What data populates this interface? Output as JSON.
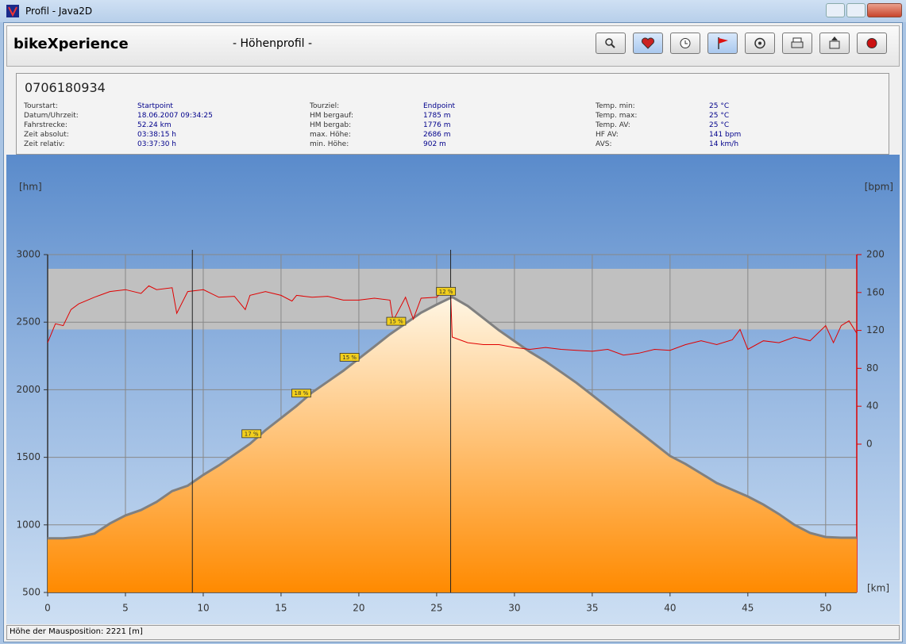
{
  "window": {
    "title": "Profil - Java2D"
  },
  "toolbar": {
    "app": "bikeXperience",
    "view": "- Höhenprofil -"
  },
  "info": {
    "tour_id": "0706180934",
    "columns": [
      [
        [
          "Tourstart:",
          "Startpoint"
        ],
        [
          "Datum/Uhrzeit:",
          "18.06.2007 09:34:25"
        ],
        [
          "Fahrstrecke:",
          "52.24 km"
        ],
        [
          "Zeit absolut:",
          "03:38:15 h"
        ],
        [
          "Zeit relativ:",
          "03:37:30 h"
        ]
      ],
      [
        [
          "Tourziel:",
          "Endpoint"
        ],
        [
          "HM bergauf:",
          "1785 m"
        ],
        [
          "HM bergab:",
          "1776 m"
        ],
        [
          "max. Höhe:",
          "2686 m"
        ],
        [
          "min. Höhe:",
          "902 m"
        ]
      ],
      [
        [
          "Temp. min:",
          "25 °C"
        ],
        [
          "Temp. max:",
          "25 °C"
        ],
        [
          "Temp. AV:",
          "25 °C"
        ],
        [
          "HF AV:",
          "141 bpm"
        ],
        [
          "AVS:",
          "14 km/h"
        ]
      ]
    ]
  },
  "chart_data": {
    "type": "line",
    "y_label": "[hm]",
    "y2_label": "[bpm]",
    "x_label": "[km]",
    "xlim": [
      0,
      52
    ],
    "xticks": [
      0,
      5,
      10,
      15,
      20,
      25,
      30,
      35,
      40,
      45,
      50
    ],
    "ylim": [
      500,
      3000
    ],
    "yticks": [
      500,
      1000,
      1500,
      2000,
      2500,
      3000
    ],
    "y2lim": [
      -156.5,
      200
    ],
    "y2ticks": [
      0,
      40,
      80,
      120,
      160,
      200
    ],
    "grid": true,
    "hr_zone": [
      121,
      185
    ],
    "markers": [
      9.3,
      25.9
    ],
    "grade_labels": [
      {
        "km": 13.1,
        "label": "17 %"
      },
      {
        "km": 16.3,
        "label": "18 %"
      },
      {
        "km": 19.4,
        "label": "15 %"
      },
      {
        "km": 22.4,
        "label": "15 %"
      },
      {
        "km": 25.6,
        "label": "12 %"
      }
    ],
    "series": [
      {
        "color": "#808080",
        "x": [
          0,
          1,
          2,
          3,
          4,
          5,
          6,
          7,
          8,
          9,
          10,
          11,
          12,
          13,
          14,
          15,
          16,
          17,
          18,
          19,
          20,
          21,
          22,
          23,
          24,
          25,
          26,
          27,
          28,
          29,
          30,
          31,
          32,
          33,
          34,
          35,
          36,
          37,
          38,
          39,
          40,
          41,
          42,
          43,
          44,
          45,
          46,
          47,
          48,
          49,
          50,
          51,
          52
        ],
        "values": [
          900,
          900,
          910,
          935,
          1010,
          1070,
          1110,
          1170,
          1250,
          1290,
          1370,
          1440,
          1520,
          1600,
          1700,
          1790,
          1880,
          1980,
          2060,
          2140,
          2230,
          2320,
          2410,
          2490,
          2570,
          2630,
          2686,
          2620,
          2530,
          2440,
          2360,
          2280,
          2210,
          2130,
          2050,
          1960,
          1870,
          1780,
          1690,
          1600,
          1510,
          1450,
          1380,
          1310,
          1260,
          1210,
          1150,
          1080,
          1000,
          940,
          910,
          905,
          905
        ]
      },
      {
        "color": "#e00000",
        "axis": "y2",
        "x": [
          0,
          0.5,
          1,
          1.5,
          2,
          3,
          4,
          5,
          6,
          6.5,
          7,
          8,
          8.3,
          9,
          10,
          11,
          12,
          12.7,
          13,
          14,
          15,
          15.7,
          16,
          17,
          18,
          19,
          20,
          21,
          22,
          22.2,
          23,
          23.5,
          24,
          25,
          25.5,
          25.9,
          26,
          27,
          28,
          29,
          30,
          31,
          32,
          33,
          34,
          35,
          36,
          37,
          38,
          39,
          40,
          41,
          42,
          43,
          44,
          44.5,
          45,
          46,
          47,
          48,
          49,
          50,
          50.5,
          51,
          51.5,
          52
        ],
        "values": [
          107,
          127,
          125,
          142,
          148,
          155,
          161,
          163,
          159,
          167,
          163,
          165,
          138,
          161,
          163,
          155,
          156,
          142,
          157,
          161,
          157,
          151,
          157,
          155,
          156,
          152,
          152,
          154,
          152,
          130,
          155,
          132,
          154,
          155,
          163,
          159,
          113,
          107,
          105,
          105,
          102,
          100,
          102,
          100,
          99,
          98,
          100,
          94,
          96,
          100,
          99,
          105,
          109,
          105,
          110,
          121,
          100,
          109,
          107,
          113,
          109,
          125,
          107,
          125,
          130,
          117
        ]
      }
    ]
  },
  "status": "Höhe der Mausposition: 2221 [m]"
}
